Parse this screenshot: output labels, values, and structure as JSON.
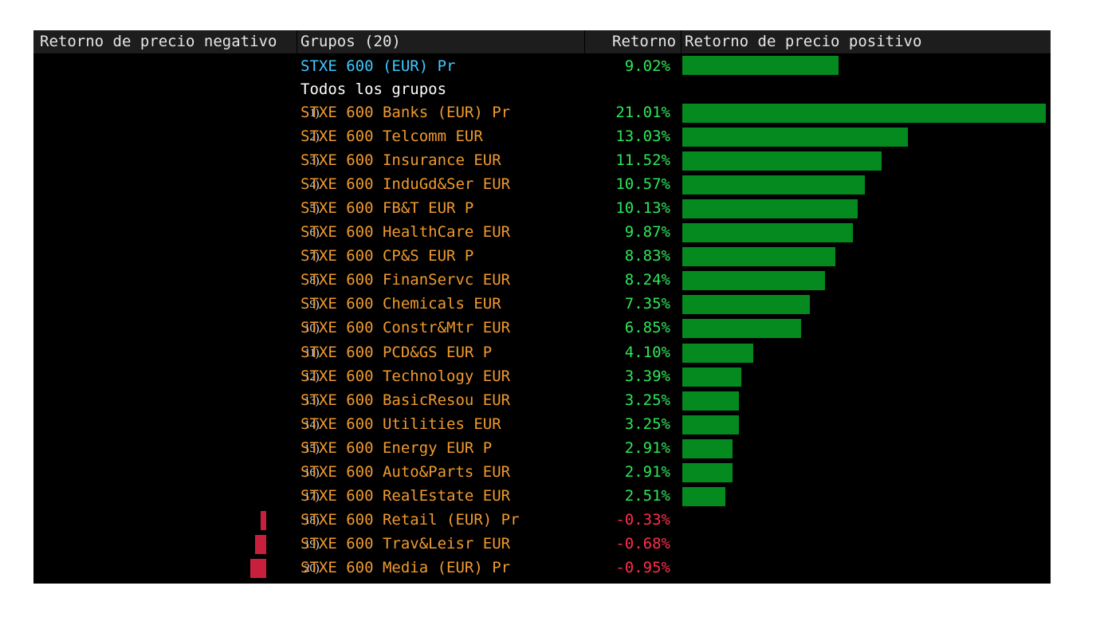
{
  "colors": {
    "positive_bar": "#058a1f",
    "negative_bar": "#c8203c",
    "positive_text": "#2ee65a",
    "negative_text": "#ff2d4b",
    "name_text": "#f09a2f",
    "benchmark_text": "#3fc8ff",
    "header_bg": "#1d1d1d"
  },
  "header": {
    "negative_label": "Retorno de precio negativo",
    "groups_label": "Grupos (20)",
    "return_label": "Retorno",
    "positive_label": "Retorno de precio positivo"
  },
  "benchmark": {
    "name": "STXE 600 (EUR) Pr",
    "value": 9.02,
    "label": "9.02%"
  },
  "section_label": "Todos los grupos",
  "chart_data": {
    "type": "bar",
    "orientation": "horizontal",
    "categories": [
      "STXE 600 Banks (EUR) Pr",
      "STXE 600 Telcomm EUR",
      "STXE 600 Insurance EUR",
      "STXE 600 InduGd&Ser EUR",
      "STXE 600 FB&T EUR P",
      "STXE 600 HealthCare EUR",
      "STXE 600 CP&S EUR P",
      "STXE 600 FinanServc EUR",
      "STXE 600 Chemicals EUR",
      "STXE 600 Constr&Mtr EUR",
      "STXE 600 PCD&GS EUR P",
      "STXE 600 Technology EUR",
      "STXE 600 BasicResou EUR",
      "STXE 600 Utilities EUR",
      "STXE 600 Energy EUR P",
      "STXE 600 Auto&Parts EUR",
      "STXE 600 RealEstate EUR",
      "STXE 600 Retail (EUR) Pr",
      "STXE 600 Trav&Leisr EUR",
      "STXE 600 Media (EUR) Pr"
    ],
    "ranks": [
      "1)",
      "2)",
      "3)",
      "4)",
      "5)",
      "6)",
      "7)",
      "8)",
      "9)",
      "10)",
      "11)",
      "12)",
      "13)",
      "14)",
      "15)",
      "16)",
      "17)",
      "18)",
      "19)",
      "20)"
    ],
    "values": [
      21.01,
      13.03,
      11.52,
      10.57,
      10.13,
      9.87,
      8.83,
      8.24,
      7.35,
      6.85,
      4.1,
      3.39,
      3.25,
      3.25,
      2.91,
      2.91,
      2.51,
      -0.33,
      -0.68,
      -0.95
    ],
    "labels": [
      "21.01%",
      "13.03%",
      "11.52%",
      "10.57%",
      "10.13%",
      "9.87%",
      "8.83%",
      "8.24%",
      "7.35%",
      "6.85%",
      "4.10%",
      "3.39%",
      "3.25%",
      "3.25%",
      "2.91%",
      "2.91%",
      "2.51%",
      "-0.33%",
      "-0.68%",
      "-0.95%"
    ],
    "xlabel": "Retorno",
    "unit": "%"
  }
}
